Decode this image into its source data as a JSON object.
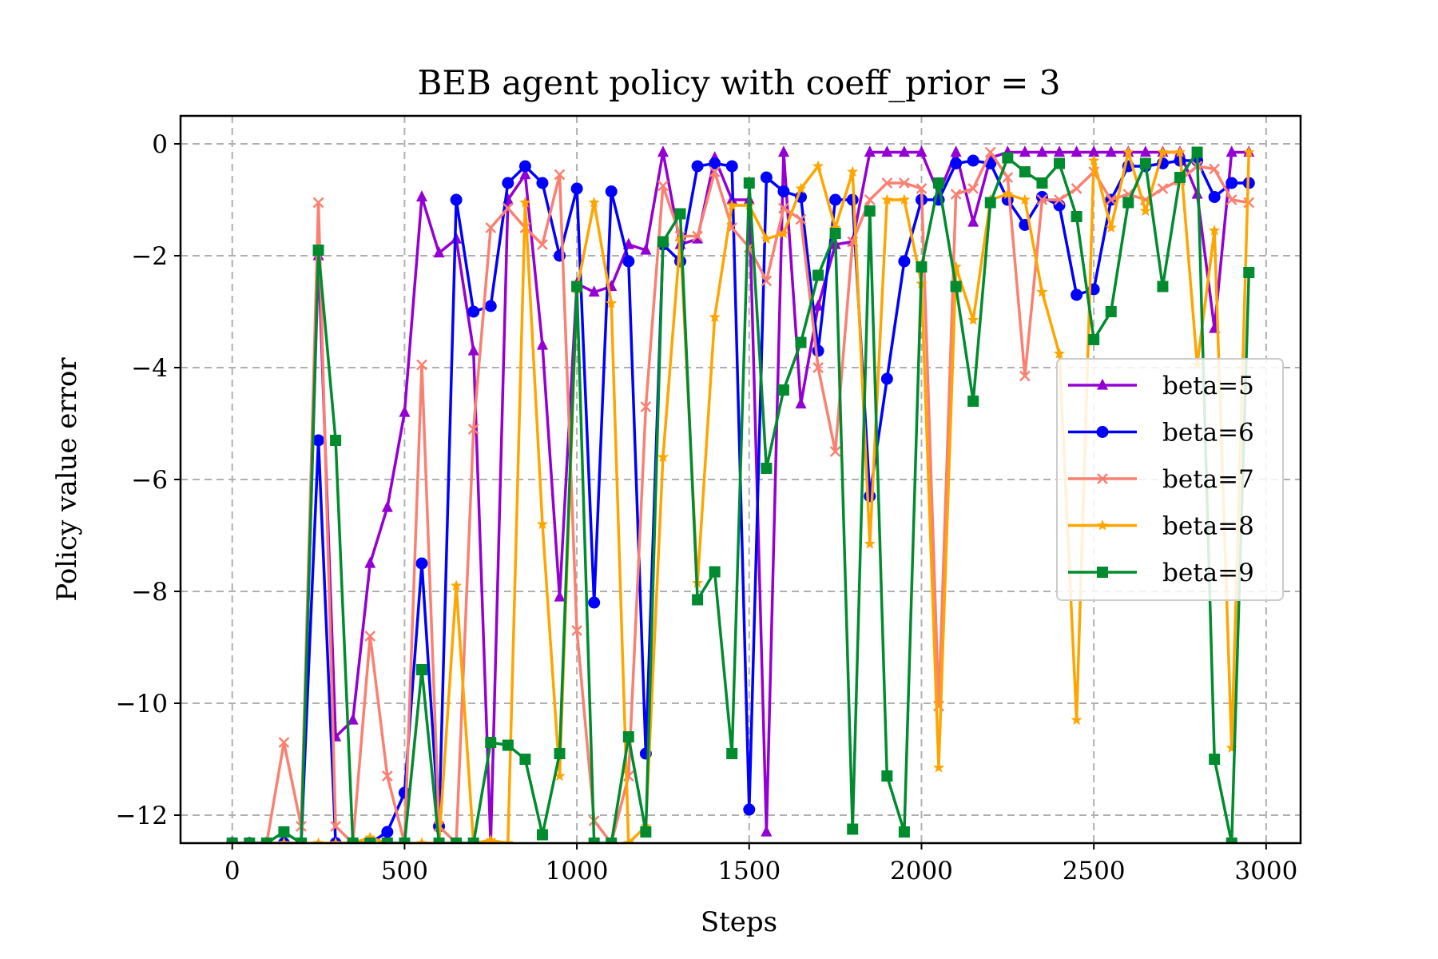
{
  "chart_data": {
    "type": "line",
    "title": "BEB agent policy with coeff_prior = 3",
    "xlabel": "Steps",
    "ylabel": "Policy value error",
    "xlim": [
      -150,
      3100
    ],
    "ylim": [
      -12.5,
      0.5
    ],
    "xticks": [
      0,
      500,
      1000,
      1500,
      2000,
      2500,
      3000
    ],
    "xtick_labels": [
      "0",
      "500",
      "1000",
      "1500",
      "2000",
      "2500",
      "3000"
    ],
    "yticks": [
      0,
      -2,
      -4,
      -6,
      -8,
      -10,
      -12
    ],
    "ytick_labels": [
      "0",
      "−2",
      "−4",
      "−6",
      "−8",
      "−10",
      "−12"
    ],
    "grid": true,
    "legend_position": "center-right",
    "x": [
      0,
      50,
      100,
      150,
      200,
      250,
      300,
      350,
      400,
      450,
      500,
      550,
      600,
      650,
      700,
      750,
      800,
      850,
      900,
      950,
      1000,
      1050,
      1100,
      1150,
      1200,
      1250,
      1300,
      1350,
      1400,
      1450,
      1500,
      1550,
      1600,
      1650,
      1700,
      1750,
      1800,
      1850,
      1900,
      1950,
      2000,
      2050,
      2100,
      2150,
      2200,
      2250,
      2300,
      2350,
      2400,
      2450,
      2500,
      2550,
      2600,
      2650,
      2700,
      2750,
      2800,
      2850,
      2900,
      2950
    ],
    "series": [
      {
        "name": "beta=5",
        "color": "#9400D3",
        "marker": "triangle",
        "values": [
          -12.5,
          -12.5,
          -12.5,
          -12.5,
          -12.5,
          -2.0,
          -10.6,
          -10.3,
          -7.5,
          -6.5,
          -4.8,
          -0.95,
          -1.95,
          -1.7,
          -3.7,
          -12.5,
          -1.0,
          -0.55,
          -3.6,
          -8.1,
          -2.5,
          -2.65,
          -2.55,
          -1.8,
          -1.9,
          -0.15,
          -1.8,
          -1.7,
          -0.25,
          -1.0,
          -1.0,
          -12.3,
          -0.15,
          -4.65,
          -2.9,
          -1.8,
          -1.75,
          -0.15,
          -0.15,
          -0.15,
          -0.15,
          -0.9,
          -0.15,
          -1.4,
          -0.25,
          -0.15,
          -0.15,
          -0.15,
          -0.15,
          -0.15,
          -0.15,
          -0.15,
          -0.15,
          -0.15,
          -0.15,
          -0.15,
          -0.9,
          -3.3,
          -0.15,
          -0.15
        ]
      },
      {
        "name": "beta=6",
        "color": "#0000FF",
        "marker": "circle",
        "values": [
          -12.5,
          -12.5,
          -12.5,
          -12.5,
          -12.5,
          -5.3,
          -12.5,
          -12.5,
          -12.5,
          -12.3,
          -11.6,
          -7.5,
          -12.2,
          -1.0,
          -3.0,
          -2.9,
          -0.7,
          -0.4,
          -0.7,
          -2.0,
          -0.8,
          -8.2,
          -0.85,
          -2.1,
          -10.9,
          -1.8,
          -2.1,
          -0.4,
          -0.35,
          -0.4,
          -11.9,
          -0.6,
          -0.85,
          -0.95,
          -3.7,
          -1.0,
          -1.0,
          -6.3,
          -4.2,
          -2.1,
          -1.0,
          -1.0,
          -0.35,
          -0.3,
          -0.35,
          -1.0,
          -1.45,
          -0.95,
          -1.1,
          -2.7,
          -2.6,
          -1.0,
          -0.4,
          -0.4,
          -0.35,
          -0.3,
          -0.3,
          -0.95,
          -0.7,
          -0.7
        ]
      },
      {
        "name": "beta=7",
        "color": "#FA8072",
        "marker": "x",
        "values": [
          -12.5,
          -12.5,
          -12.5,
          -10.7,
          -12.2,
          -1.05,
          -12.2,
          -12.5,
          -8.8,
          -11.3,
          -12.5,
          -3.95,
          -12.2,
          -12.5,
          -5.1,
          -1.5,
          -1.15,
          -1.5,
          -1.8,
          -0.55,
          -8.7,
          -12.1,
          -12.5,
          -11.3,
          -4.7,
          -0.75,
          -1.65,
          -1.65,
          -0.5,
          -1.5,
          -1.85,
          -2.45,
          -1.15,
          -1.35,
          -4.0,
          -5.5,
          -1.75,
          -1.0,
          -0.7,
          -0.7,
          -0.8,
          -10.05,
          -0.9,
          -0.8,
          -0.15,
          -0.6,
          -4.15,
          -1.0,
          -1.0,
          -0.8,
          -0.5,
          -1.0,
          -0.9,
          -1.0,
          -0.8,
          -0.65,
          -0.4,
          -0.45,
          -1.0,
          -1.05
        ]
      },
      {
        "name": "beta=8",
        "color": "#FFA500",
        "marker": "star",
        "values": [
          -12.5,
          -12.5,
          -12.5,
          -12.5,
          -12.5,
          -12.5,
          -12.5,
          -12.5,
          -12.4,
          -12.5,
          -12.5,
          -12.5,
          -12.5,
          -7.9,
          -12.5,
          -12.45,
          -12.5,
          -1.05,
          -6.8,
          -11.3,
          -2.6,
          -1.05,
          -2.85,
          -12.5,
          -12.2,
          -5.6,
          -1.7,
          -7.85,
          -3.1,
          -1.1,
          -1.1,
          -1.7,
          -1.6,
          -0.8,
          -0.4,
          -1.5,
          -0.5,
          -7.15,
          -1.0,
          -1.0,
          -2.5,
          -11.15,
          -2.2,
          -3.15,
          -1.0,
          -0.9,
          -1.0,
          -2.65,
          -3.75,
          -10.3,
          -0.3,
          -1.5,
          -0.15,
          -1.2,
          -0.15,
          -0.15,
          -3.95,
          -1.55,
          -10.8,
          -0.15
        ]
      },
      {
        "name": "beta=9",
        "color": "#008B2F",
        "marker": "square",
        "values": [
          -12.5,
          -12.5,
          -12.5,
          -12.3,
          -12.5,
          -1.9,
          -5.3,
          -12.5,
          -12.5,
          -12.5,
          -12.5,
          -9.4,
          -12.5,
          -12.5,
          -12.5,
          -10.7,
          -10.75,
          -11.0,
          -12.35,
          -10.9,
          -2.55,
          -12.5,
          -12.5,
          -10.6,
          -12.3,
          -1.75,
          -1.25,
          -8.15,
          -7.65,
          -10.9,
          -0.7,
          -5.8,
          -4.4,
          -3.55,
          -2.35,
          -1.6,
          -12.25,
          -1.2,
          -11.3,
          -12.3,
          -2.2,
          -0.7,
          -2.55,
          -4.6,
          -1.05,
          -0.25,
          -0.5,
          -0.7,
          -0.35,
          -1.3,
          -3.5,
          -3.0,
          -1.05,
          -0.35,
          -2.55,
          -0.6,
          -0.15,
          -11.0,
          -12.5,
          -2.3
        ]
      }
    ]
  }
}
